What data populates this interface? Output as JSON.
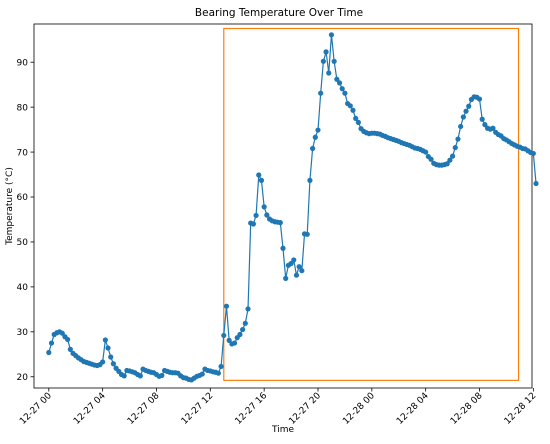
{
  "chart_data": {
    "type": "line",
    "title": "Bearing Temperature Over Time",
    "xlabel": "Time",
    "ylabel": "Temperature (°C)",
    "xlim_hours": [
      -1.1,
      35.9
    ],
    "ylim": [
      17.5,
      98.5
    ],
    "x_ticks": [
      {
        "hours": 0,
        "label": "12-27 00"
      },
      {
        "hours": 4,
        "label": "12-27 04"
      },
      {
        "hours": 8,
        "label": "12-27 08"
      },
      {
        "hours": 12,
        "label": "12-27 12"
      },
      {
        "hours": 16,
        "label": "12-27 16"
      },
      {
        "hours": 20,
        "label": "12-27 20"
      },
      {
        "hours": 24,
        "label": "12-28 00"
      },
      {
        "hours": 28,
        "label": "12-28 04"
      },
      {
        "hours": 32,
        "label": "12-28 08"
      },
      {
        "hours": 36,
        "label": "12-28 12"
      }
    ],
    "y_ticks": [
      20,
      30,
      40,
      50,
      60,
      70,
      80,
      90
    ],
    "series_color": "#1f77b4",
    "highlight_color": "#ff7f0e",
    "highlight_region": {
      "x_start_hours": 13.0,
      "x_end_hours": 34.9,
      "y_min": 19.2,
      "y_max": 97.5
    },
    "series": [
      {
        "points": [
          [
            0.0,
            25.4
          ],
          [
            0.2,
            27.5
          ],
          [
            0.4,
            29.4
          ],
          [
            0.6,
            29.8
          ],
          [
            0.8,
            30.0
          ],
          [
            1.0,
            29.7
          ],
          [
            1.2,
            28.9
          ],
          [
            1.4,
            28.3
          ],
          [
            1.6,
            26.1
          ],
          [
            1.8,
            25.2
          ],
          [
            2.0,
            24.7
          ],
          [
            2.2,
            24.2
          ],
          [
            2.4,
            23.8
          ],
          [
            2.6,
            23.4
          ],
          [
            2.8,
            23.2
          ],
          [
            3.0,
            23.0
          ],
          [
            3.2,
            22.8
          ],
          [
            3.4,
            22.6
          ],
          [
            3.6,
            22.5
          ],
          [
            3.8,
            22.7
          ],
          [
            4.0,
            23.3
          ],
          [
            4.2,
            28.2
          ],
          [
            4.4,
            26.4
          ],
          [
            4.6,
            24.4
          ],
          [
            4.8,
            22.9
          ],
          [
            5.0,
            21.9
          ],
          [
            5.2,
            21.2
          ],
          [
            5.4,
            20.5
          ],
          [
            5.6,
            20.2
          ],
          [
            5.8,
            21.4
          ],
          [
            6.0,
            21.3
          ],
          [
            6.2,
            21.1
          ],
          [
            6.4,
            20.9
          ],
          [
            6.6,
            20.5
          ],
          [
            6.8,
            20.2
          ],
          [
            7.0,
            21.7
          ],
          [
            7.2,
            21.4
          ],
          [
            7.4,
            21.2
          ],
          [
            7.6,
            21.0
          ],
          [
            7.8,
            20.9
          ],
          [
            8.0,
            20.5
          ],
          [
            8.2,
            20.1
          ],
          [
            8.4,
            20.3
          ],
          [
            8.6,
            21.4
          ],
          [
            8.8,
            21.2
          ],
          [
            9.0,
            21.0
          ],
          [
            9.2,
            20.9
          ],
          [
            9.4,
            20.9
          ],
          [
            9.6,
            20.8
          ],
          [
            9.8,
            20.2
          ],
          [
            10.0,
            19.8
          ],
          [
            10.2,
            19.7
          ],
          [
            10.4,
            19.4
          ],
          [
            10.6,
            19.3
          ],
          [
            10.8,
            19.7
          ],
          [
            11.0,
            20.1
          ],
          [
            11.2,
            20.3
          ],
          [
            11.4,
            20.6
          ],
          [
            11.6,
            21.7
          ],
          [
            11.8,
            21.4
          ],
          [
            12.0,
            21.3
          ],
          [
            12.2,
            21.1
          ],
          [
            12.4,
            21.0
          ],
          [
            12.6,
            20.8
          ],
          [
            12.8,
            22.3
          ],
          [
            13.0,
            29.2
          ],
          [
            13.2,
            35.7
          ],
          [
            13.4,
            28.1
          ],
          [
            13.6,
            27.3
          ],
          [
            13.8,
            27.5
          ],
          [
            14.0,
            28.7
          ],
          [
            14.2,
            29.4
          ],
          [
            14.4,
            30.5
          ],
          [
            14.6,
            31.9
          ],
          [
            14.8,
            35.1
          ],
          [
            15.0,
            54.2
          ],
          [
            15.2,
            54.0
          ],
          [
            15.4,
            55.9
          ],
          [
            15.6,
            64.9
          ],
          [
            15.8,
            63.7
          ],
          [
            16.0,
            57.8
          ],
          [
            16.2,
            56.0
          ],
          [
            16.4,
            55.1
          ],
          [
            16.6,
            54.7
          ],
          [
            16.8,
            54.5
          ],
          [
            17.0,
            54.4
          ],
          [
            17.2,
            54.3
          ],
          [
            17.4,
            48.6
          ],
          [
            17.6,
            41.9
          ],
          [
            17.8,
            44.8
          ],
          [
            18.0,
            45.2
          ],
          [
            18.2,
            46.0
          ],
          [
            18.4,
            42.6
          ],
          [
            18.6,
            44.5
          ],
          [
            18.8,
            43.6
          ],
          [
            19.0,
            51.8
          ],
          [
            19.2,
            51.7
          ],
          [
            19.4,
            63.7
          ],
          [
            19.6,
            70.8
          ],
          [
            19.8,
            73.3
          ],
          [
            20.0,
            74.9
          ],
          [
            20.2,
            83.1
          ],
          [
            20.4,
            90.2
          ],
          [
            20.6,
            92.3
          ],
          [
            20.8,
            87.6
          ],
          [
            21.0,
            96.1
          ],
          [
            21.2,
            90.2
          ],
          [
            21.4,
            86.2
          ],
          [
            21.6,
            85.4
          ],
          [
            21.8,
            84.1
          ],
          [
            22.0,
            83.1
          ],
          [
            22.2,
            80.8
          ],
          [
            22.4,
            80.3
          ],
          [
            22.6,
            79.3
          ],
          [
            22.8,
            77.5
          ],
          [
            23.0,
            76.6
          ],
          [
            23.2,
            75.2
          ],
          [
            23.4,
            74.6
          ],
          [
            23.6,
            74.3
          ],
          [
            23.8,
            74.1
          ],
          [
            24.0,
            74.2
          ],
          [
            24.2,
            74.2
          ],
          [
            24.4,
            74.1
          ],
          [
            24.6,
            74.0
          ],
          [
            24.8,
            73.7
          ],
          [
            25.0,
            73.5
          ],
          [
            25.2,
            73.2
          ],
          [
            25.4,
            73.0
          ],
          [
            25.6,
            72.8
          ],
          [
            25.8,
            72.6
          ],
          [
            26.0,
            72.4
          ],
          [
            26.2,
            72.1
          ],
          [
            26.4,
            71.9
          ],
          [
            26.6,
            71.7
          ],
          [
            26.8,
            71.5
          ],
          [
            27.0,
            71.2
          ],
          [
            27.2,
            70.9
          ],
          [
            27.4,
            70.8
          ],
          [
            27.6,
            70.6
          ],
          [
            27.8,
            70.3
          ],
          [
            28.0,
            70.0
          ],
          [
            28.2,
            69.0
          ],
          [
            28.4,
            68.4
          ],
          [
            28.6,
            67.5
          ],
          [
            28.8,
            67.2
          ],
          [
            29.0,
            67.1
          ],
          [
            29.2,
            67.1
          ],
          [
            29.4,
            67.2
          ],
          [
            29.6,
            67.4
          ],
          [
            29.8,
            68.2
          ],
          [
            30.0,
            69.1
          ],
          [
            30.2,
            71.0
          ],
          [
            30.4,
            72.9
          ],
          [
            30.6,
            75.7
          ],
          [
            30.8,
            77.8
          ],
          [
            31.0,
            79.1
          ],
          [
            31.2,
            80.2
          ],
          [
            31.4,
            81.7
          ],
          [
            31.6,
            82.3
          ],
          [
            31.8,
            82.2
          ],
          [
            32.0,
            81.8
          ],
          [
            32.2,
            77.3
          ],
          [
            32.4,
            76.1
          ],
          [
            32.6,
            75.3
          ],
          [
            32.8,
            75.1
          ],
          [
            33.0,
            75.3
          ],
          [
            33.2,
            74.4
          ],
          [
            33.4,
            73.9
          ],
          [
            33.6,
            73.6
          ],
          [
            33.8,
            73.0
          ],
          [
            34.0,
            72.7
          ],
          [
            34.2,
            72.3
          ],
          [
            34.4,
            71.9
          ],
          [
            34.6,
            71.6
          ],
          [
            34.8,
            71.3
          ],
          [
            35.0,
            71.1
          ],
          [
            35.2,
            70.8
          ],
          [
            35.4,
            70.7
          ],
          [
            35.6,
            70.3
          ],
          [
            35.8,
            69.9
          ],
          [
            36.0,
            69.7
          ],
          [
            36.2,
            63.0
          ]
        ]
      }
    ]
  }
}
